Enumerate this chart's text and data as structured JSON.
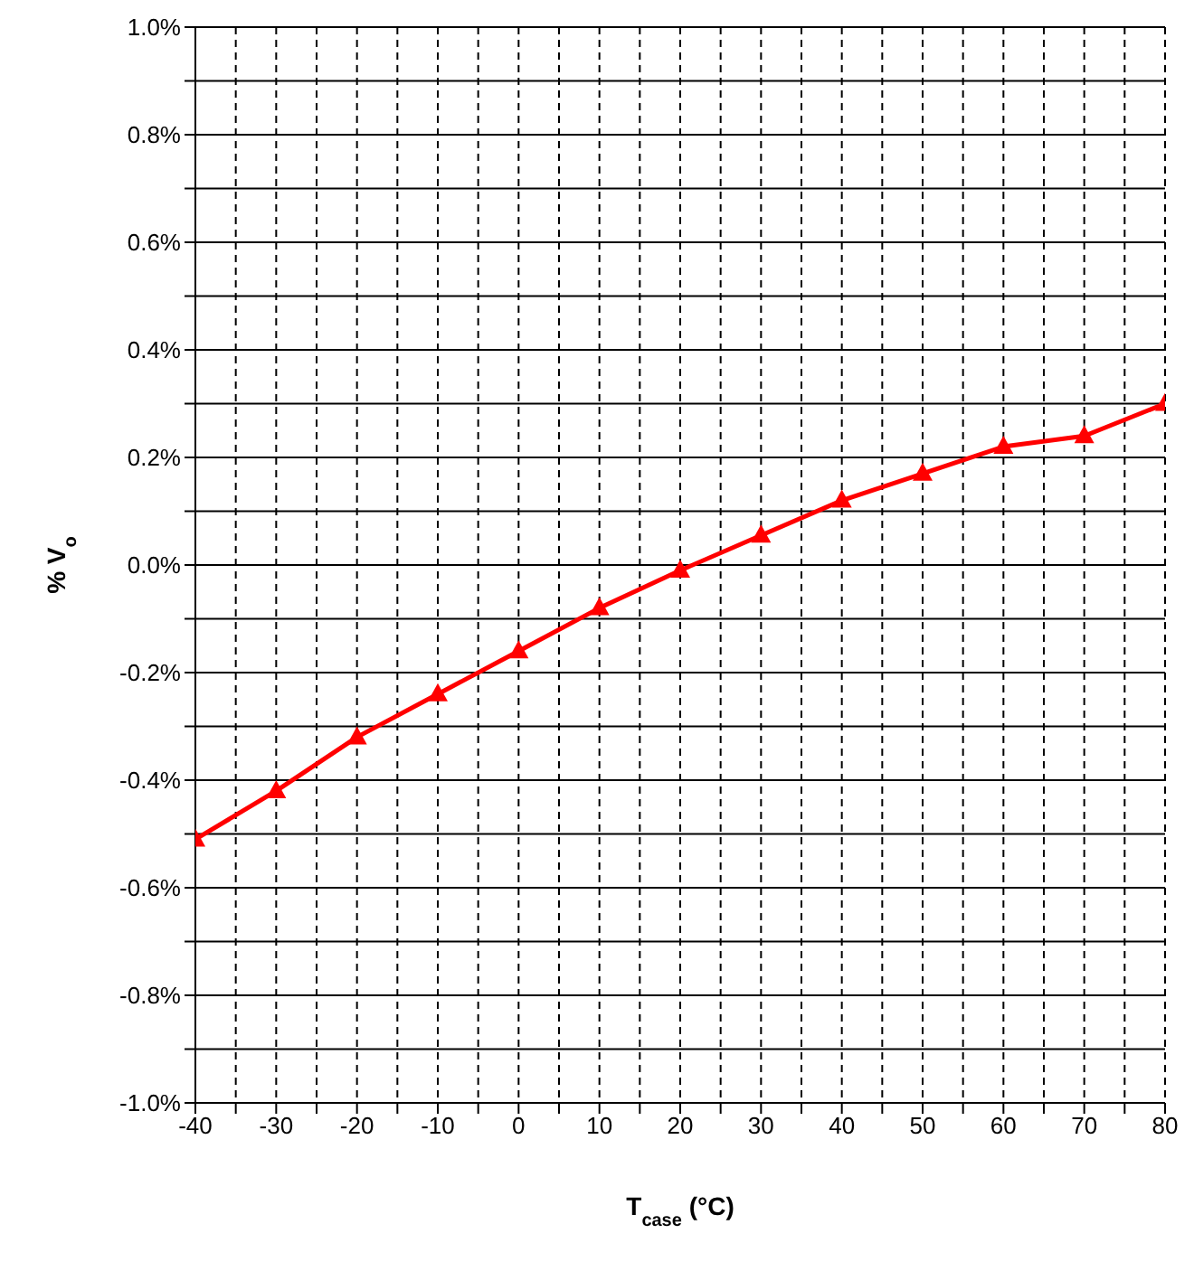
{
  "chart_data": {
    "type": "line",
    "xlabel": "T$_{case}$ (°C)",
    "ylabel": "% V$_{o}$",
    "x": [
      -40,
      -30,
      -20,
      -10,
      0,
      10,
      20,
      30,
      40,
      50,
      60,
      70,
      80
    ],
    "series": [
      {
        "color": "#ff0000",
        "values": [
          -0.51,
          -0.42,
          -0.32,
          -0.24,
          -0.16,
          -0.08,
          -0.01,
          0.055,
          0.12,
          0.17,
          0.22,
          0.24,
          0.3
        ]
      }
    ],
    "xlim": [
      -40,
      80
    ],
    "xticks": [
      -40,
      {
        "value": -35,
        "label": null
      },
      -30,
      {
        "value": -25,
        "label": null
      },
      -20,
      {
        "value": -15,
        "label": null
      },
      -10,
      {
        "value": -5,
        "label": null
      },
      0,
      {
        "value": 5,
        "label": null
      },
      10,
      {
        "value": 15,
        "label": null
      },
      20,
      {
        "value": 25,
        "label": null
      },
      30,
      {
        "value": 35,
        "label": null
      },
      40,
      {
        "value": 45,
        "label": null
      },
      50,
      {
        "value": 55,
        "label": null
      },
      60,
      {
        "value": 65,
        "label": null
      },
      70,
      {
        "value": 75,
        "label": null
      },
      80
    ],
    "ylim": [
      -1.0,
      1.0
    ],
    "yticks": [
      {
        "value": -1.0,
        "label": "-1.0%"
      },
      {
        "value": -0.9,
        "label": null
      },
      {
        "value": -0.8,
        "label": "-0.8%"
      },
      {
        "value": -0.7,
        "label": null
      },
      {
        "value": -0.6,
        "label": "-0.6%"
      },
      {
        "value": -0.5,
        "label": null
      },
      {
        "value": -0.4,
        "label": "-0.4%"
      },
      {
        "value": -0.3,
        "label": null
      },
      {
        "value": -0.2,
        "label": "-0.2%"
      },
      {
        "value": -0.1,
        "label": null
      },
      {
        "value": 0.0,
        "label": "0.0%"
      },
      {
        "value": 0.1,
        "label": null
      },
      {
        "value": 0.2,
        "label": "0.2%"
      },
      {
        "value": 0.3,
        "label": null
      },
      {
        "value": 0.4,
        "label": "0.4%"
      },
      {
        "value": 0.5,
        "label": null
      },
      {
        "value": 0.6,
        "label": "0.6%"
      },
      {
        "value": 0.7,
        "label": null
      },
      {
        "value": 0.8,
        "label": "0.8%"
      },
      {
        "value": 0.9,
        "label": null
      },
      {
        "value": 1.0,
        "label": "1.0%"
      }
    ],
    "grid": true,
    "marker": "triangle",
    "line_style": "solid"
  }
}
